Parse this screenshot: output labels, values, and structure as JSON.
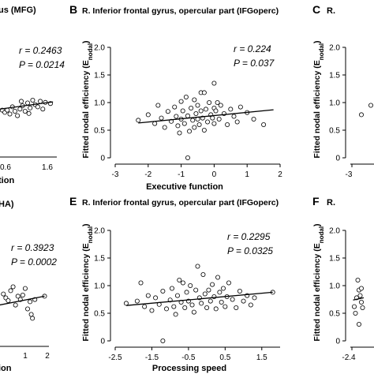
{
  "chart_data": [
    {
      "panel": "",
      "type": "scatter",
      "title": "us (MFG)",
      "stat_r": "r = 0.2463",
      "stat_p": "P = 0.0214",
      "xlabel": "tion",
      "xticks": [
        "0.6",
        "1.6"
      ],
      "xlim": [
        -0.8,
        2.0
      ],
      "ylim": [
        0,
        2.0
      ],
      "points": [
        [
          -0.6,
          0.75
        ],
        [
          -0.4,
          0.72
        ],
        [
          -0.3,
          0.68
        ],
        [
          -0.2,
          0.72
        ],
        [
          -0.1,
          0.65
        ],
        [
          0.0,
          0.78
        ],
        [
          0.1,
          0.7
        ],
        [
          0.2,
          0.62
        ],
        [
          0.3,
          0.74
        ],
        [
          0.4,
          0.8
        ],
        [
          0.5,
          0.7
        ],
        [
          0.6,
          0.85
        ],
        [
          0.7,
          0.76
        ],
        [
          0.8,
          0.9
        ],
        [
          0.9,
          0.82
        ],
        [
          1.0,
          0.78
        ],
        [
          1.1,
          0.88
        ],
        [
          1.2,
          0.74
        ],
        [
          1.3,
          0.86
        ],
        [
          1.5,
          0.84
        ],
        [
          0.65,
          0.66
        ],
        [
          0.35,
          0.88
        ]
      ],
      "fit": [
        [
          -0.8,
          0.72
        ],
        [
          1.6,
          0.87
        ]
      ]
    },
    {
      "panel": "B",
      "type": "scatter",
      "title": "R. Inferior frontal gyrus, opercular part (IFGoperc)",
      "stat_r": "r = 0.224",
      "stat_p": "P = 0.037",
      "xlabel": "Executive function",
      "ylabel": "Fitted nodal efficiency (E",
      "ylabel_sub": "nodal",
      "ylabel_end": ")",
      "xticks": [
        "-3",
        "-2",
        "-1",
        "0",
        "1",
        "2"
      ],
      "yticks": [
        "0",
        "0.5",
        "1.0",
        "1.5",
        "2.0"
      ],
      "xlim": [
        -3,
        2
      ],
      "ylim": [
        0,
        2.0
      ],
      "points": [
        [
          -2.3,
          0.68
        ],
        [
          -2.0,
          0.78
        ],
        [
          -1.8,
          0.62
        ],
        [
          -1.6,
          0.72
        ],
        [
          -1.5,
          0.55
        ],
        [
          -1.4,
          0.84
        ],
        [
          -1.3,
          0.66
        ],
        [
          -1.2,
          0.92
        ],
        [
          -1.15,
          0.75
        ],
        [
          -1.1,
          0.58
        ],
        [
          -1.0,
          1.02
        ],
        [
          -1.0,
          0.7
        ],
        [
          -0.95,
          0.85
        ],
        [
          -0.9,
          0.62
        ],
        [
          -0.85,
          1.1
        ],
        [
          -0.8,
          0.76
        ],
        [
          -0.75,
          0.48
        ],
        [
          -0.7,
          0.9
        ],
        [
          -0.65,
          0.68
        ],
        [
          -0.6,
          1.05
        ],
        [
          -0.6,
          0.55
        ],
        [
          -0.55,
          0.8
        ],
        [
          -0.5,
          0.7
        ],
        [
          -0.5,
          0.95
        ],
        [
          -0.45,
          0.6
        ],
        [
          -0.4,
          1.18
        ],
        [
          -0.4,
          0.85
        ],
        [
          -0.35,
          0.72
        ],
        [
          -0.3,
          1.18
        ],
        [
          -0.3,
          0.5
        ],
        [
          -0.25,
          0.88
        ],
        [
          -0.2,
          0.65
        ],
        [
          -0.15,
          1.0
        ],
        [
          -0.1,
          0.78
        ],
        [
          -0.05,
          0.72
        ],
        [
          0.0,
          1.35
        ],
        [
          0.0,
          0.9
        ],
        [
          0.0,
          0.62
        ],
        [
          0.05,
          0.85
        ],
        [
          0.1,
          1.0
        ],
        [
          0.15,
          0.7
        ],
        [
          0.2,
          0.95
        ],
        [
          0.3,
          0.8
        ],
        [
          0.4,
          0.6
        ],
        [
          0.5,
          0.88
        ],
        [
          0.6,
          0.75
        ],
        [
          0.7,
          0.65
        ],
        [
          0.8,
          0.92
        ],
        [
          1.0,
          0.82
        ],
        [
          1.2,
          0.7
        ],
        [
          1.5,
          0.6
        ],
        [
          -1.7,
          0.95
        ],
        [
          -0.8,
          0.0
        ],
        [
          -1.05,
          0.45
        ]
      ],
      "fit": [
        [
          -2.3,
          0.63
        ],
        [
          1.8,
          0.87
        ]
      ]
    },
    {
      "panel": "C",
      "type": "scatter",
      "title": "R.",
      "ylabel": "Fitted nodal efficiency (E",
      "ylabel_sub": "nodal",
      "ylabel_end": ")",
      "xticks": [
        "-3"
      ],
      "yticks": [
        "0",
        "0.5",
        "1.0",
        "1.5",
        "2.0"
      ],
      "ylim": [
        0,
        2.0
      ],
      "points": [
        [
          -2.6,
          0.78
        ],
        [
          -2.2,
          0.95
        ]
      ],
      "fit": []
    },
    {
      "panel": "",
      "type": "scatter",
      "title": "HA)",
      "stat_r": "r = 0.3923",
      "stat_p": "P = 0.0002",
      "xlabel": "ion",
      "xticks": [
        "1",
        "2"
      ],
      "xlim": [
        -0.6,
        2.2
      ],
      "ylim": [
        0,
        2.0
      ],
      "points": [
        [
          -0.5,
          0.72
        ],
        [
          -0.4,
          0.85
        ],
        [
          -0.3,
          0.65
        ],
        [
          -0.2,
          0.82
        ],
        [
          -0.1,
          0.75
        ],
        [
          0.0,
          0.7
        ],
        [
          0.1,
          0.88
        ],
        [
          0.2,
          0.95
        ],
        [
          0.3,
          0.62
        ],
        [
          0.4,
          0.78
        ],
        [
          0.5,
          0.72
        ],
        [
          0.6,
          0.8
        ],
        [
          0.7,
          0.92
        ],
        [
          0.8,
          0.55
        ],
        [
          0.9,
          0.68
        ],
        [
          0.95,
          0.45
        ],
        [
          1.0,
          0.38
        ],
        [
          1.1,
          0.72
        ],
        [
          1.5,
          0.78
        ]
      ],
      "fit": [
        [
          -0.6,
          0.6
        ],
        [
          1.5,
          0.78
        ]
      ]
    },
    {
      "panel": "E",
      "type": "scatter",
      "title": "R. Inferior frontal gyrus, opercular part (IFGoperc)",
      "stat_r": "r = 0.2295",
      "stat_p": "P = 0.0325",
      "xlabel": "Processing speed",
      "ylabel": "Fitted nodal efficiency (E",
      "ylabel_sub": "nodal",
      "ylabel_end": ")",
      "xticks": [
        "-2.5",
        "-1.5",
        "-0.5",
        "0.5",
        "1.5"
      ],
      "yticks": [
        "0",
        "0.5",
        "1.0",
        "1.5",
        "2.0"
      ],
      "xlim": [
        -2.5,
        2.0
      ],
      "ylim": [
        0,
        2.0
      ],
      "points": [
        [
          -2.2,
          0.68
        ],
        [
          -1.9,
          0.72
        ],
        [
          -1.7,
          0.62
        ],
        [
          -1.6,
          0.82
        ],
        [
          -1.5,
          0.55
        ],
        [
          -1.4,
          0.78
        ],
        [
          -1.3,
          0.66
        ],
        [
          -1.2,
          0.9
        ],
        [
          -1.1,
          0.58
        ],
        [
          -1.0,
          0.74
        ],
        [
          -0.95,
          0.95
        ],
        [
          -0.9,
          0.62
        ],
        [
          -0.85,
          0.48
        ],
        [
          -0.8,
          0.82
        ],
        [
          -0.7,
          0.7
        ],
        [
          -0.65,
          1.05
        ],
        [
          -0.6,
          0.6
        ],
        [
          -0.55,
          0.88
        ],
        [
          -0.5,
          0.72
        ],
        [
          -0.45,
          1.0
        ],
        [
          -0.4,
          0.65
        ],
        [
          -0.35,
          0.52
        ],
        [
          -0.3,
          0.92
        ],
        [
          -0.25,
          1.35
        ],
        [
          -0.2,
          0.78
        ],
        [
          -0.15,
          0.68
        ],
        [
          -0.1,
          1.2
        ],
        [
          -0.05,
          0.85
        ],
        [
          0.0,
          0.6
        ],
        [
          0.05,
          0.92
        ],
        [
          0.1,
          0.72
        ],
        [
          0.15,
          1.02
        ],
        [
          0.2,
          0.8
        ],
        [
          0.25,
          0.58
        ],
        [
          0.3,
          1.15
        ],
        [
          0.35,
          0.88
        ],
        [
          0.4,
          0.7
        ],
        [
          0.45,
          0.95
        ],
        [
          0.5,
          0.62
        ],
        [
          0.55,
          0.8
        ],
        [
          0.6,
          1.05
        ],
        [
          0.7,
          0.75
        ],
        [
          0.8,
          0.6
        ],
        [
          0.9,
          0.9
        ],
        [
          1.0,
          0.72
        ],
        [
          1.1,
          0.82
        ],
        [
          1.2,
          0.65
        ],
        [
          1.3,
          0.78
        ],
        [
          1.8,
          0.88
        ],
        [
          -1.2,
          0.0
        ],
        [
          -1.8,
          1.05
        ],
        [
          -0.75,
          1.1
        ]
      ],
      "fit": [
        [
          -2.2,
          0.64
        ],
        [
          1.8,
          0.88
        ]
      ]
    },
    {
      "panel": "F",
      "type": "scatter",
      "title": "R.",
      "ylabel": "Fitted nodal efficiency (E",
      "ylabel_sub": "nodal",
      "ylabel_end": ")",
      "xticks": [
        "-2.4"
      ],
      "yticks": [
        "0",
        "0.5",
        "1.0",
        "1.5",
        "2.0"
      ],
      "ylim": [
        0,
        2.0
      ],
      "points": [
        [
          -2.3,
          0.62
        ],
        [
          -2.2,
          0.78
        ],
        [
          -2.1,
          0.92
        ],
        [
          -2.0,
          0.7
        ],
        [
          -2.25,
          0.5
        ],
        [
          -2.15,
          1.1
        ],
        [
          -2.05,
          0.82
        ],
        [
          -1.95,
          0.6
        ],
        [
          -2.1,
          0.3
        ],
        [
          -2.0,
          0.95
        ]
      ],
      "fit": [
        [
          -2.35,
          0.74
        ],
        [
          -1.9,
          0.78
        ]
      ]
    }
  ]
}
